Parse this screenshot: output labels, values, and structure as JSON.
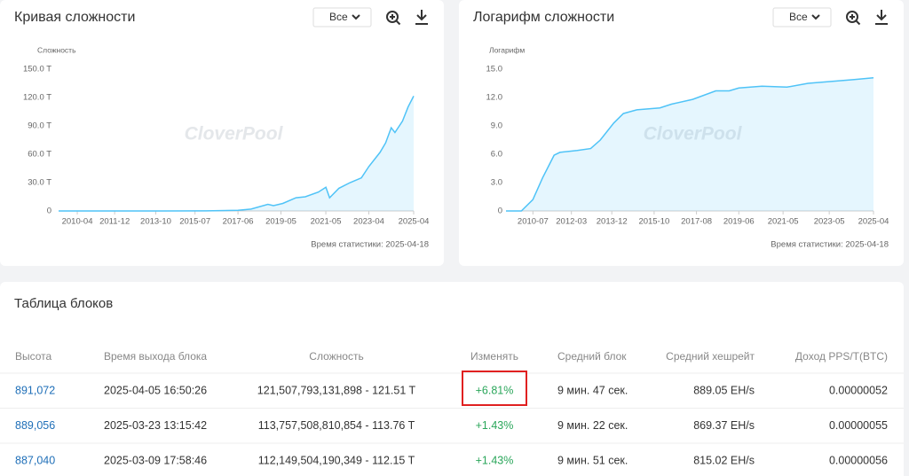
{
  "chart_data": [
    {
      "type": "line",
      "title": "Кривая сложности",
      "select": "Все",
      "y_label": "Сложность",
      "watermark": "CloverPool",
      "footnote": "Время статистики: 2025-04-18",
      "color": "#4fc3f7",
      "grid": false,
      "x": [
        "2009-06",
        "2012-01",
        "2014-01",
        "2016-01",
        "2017-06",
        "2018-01",
        "2018-10",
        "2019-01",
        "2019-06",
        "2020-01",
        "2020-06",
        "2021-01",
        "2021-05",
        "2021-07",
        "2021-12",
        "2022-06",
        "2022-12",
        "2023-04",
        "2023-10",
        "2024-01",
        "2024-04",
        "2024-06",
        "2024-10",
        "2025-01",
        "2025-04"
      ],
      "values": [
        0,
        0,
        0.001,
        0.1,
        0.7,
        2,
        7,
        5.6,
        8,
        14,
        15,
        20,
        25,
        14,
        24,
        30,
        35,
        47,
        62,
        72,
        88,
        83,
        95,
        110,
        121.51
      ],
      "xlim": [
        "2009-06",
        "2025-04"
      ],
      "xticks": [
        "2010-04",
        "2011-12",
        "2013-10",
        "2015-07",
        "2017-06",
        "2019-05",
        "2021-05",
        "2023-04",
        "2025-04"
      ],
      "ylim": [
        0,
        150
      ],
      "yticks": [
        0,
        {
          "value": 30,
          "label": "30.0 T"
        },
        {
          "value": 60,
          "label": "60.0 T"
        },
        {
          "value": 90,
          "label": "90.0 T"
        },
        {
          "value": 120,
          "label": "120.0 T"
        },
        {
          "value": 150,
          "label": "150.0 T"
        }
      ]
    },
    {
      "type": "line",
      "title": "Логарифм сложности",
      "select": "Все",
      "y_label": "Логарифм",
      "watermark": "CloverPool",
      "footnote": "Время статистики: 2025-04-18",
      "color": "#4fc3f7",
      "grid": false,
      "x": [
        "2009-05",
        "2010-01",
        "2010-07",
        "2010-12",
        "2011-06",
        "2011-09",
        "2012-06",
        "2013-01",
        "2013-06",
        "2014-01",
        "2014-06",
        "2015-01",
        "2016-01",
        "2016-07",
        "2017-06",
        "2018-06",
        "2019-01",
        "2019-06",
        "2020-06",
        "2021-07",
        "2022-06",
        "2023-06",
        "2024-06",
        "2025-04"
      ],
      "values": [
        0,
        0,
        1.2,
        3.5,
        5.9,
        6.2,
        6.4,
        6.6,
        7.5,
        9.3,
        10.3,
        10.7,
        10.9,
        11.3,
        11.8,
        12.7,
        12.7,
        13.0,
        13.2,
        13.1,
        13.5,
        13.7,
        13.9,
        14.08
      ],
      "xlim": [
        "2009-05",
        "2025-04"
      ],
      "xticks": [
        "2010-07",
        "2012-03",
        "2013-12",
        "2015-10",
        "2017-08",
        "2019-06",
        "2021-05",
        "2023-05",
        "2025-04"
      ],
      "ylim": [
        0,
        15
      ],
      "yticks": [
        0,
        {
          "value": 3,
          "label": "3.0"
        },
        {
          "value": 6,
          "label": "6.0"
        },
        {
          "value": 9,
          "label": "9.0"
        },
        {
          "value": 12,
          "label": "12.0"
        },
        {
          "value": 15,
          "label": "15.0"
        }
      ]
    }
  ],
  "table": {
    "title": "Таблица блоков",
    "columns": [
      "Высота",
      "Время выхода блока",
      "Сложность",
      "Изменять",
      "Средний блок",
      "Средний хешрейт",
      "Доход PPS/T(BTC)"
    ],
    "rows": [
      [
        "891,072",
        "2025-04-05 16:50:26",
        "121,507,793,131,898 - 121.51 T",
        "+6.81%",
        "9 мин. 47 сек.",
        "889.05 EH/s",
        "0.00000052"
      ],
      [
        "889,056",
        "2025-03-23 13:15:42",
        "113,757,508,810,854 - 113.76 T",
        "+1.43%",
        "9 мин. 22 сек.",
        "869.37 EH/s",
        "0.00000055"
      ],
      [
        "887,040",
        "2025-03-09 17:58:46",
        "112,149,504,190,349 - 112.15 T",
        "+1.43%",
        "9 мин. 51 сек.",
        "815.02 EH/s",
        "0.00000056"
      ]
    ]
  }
}
